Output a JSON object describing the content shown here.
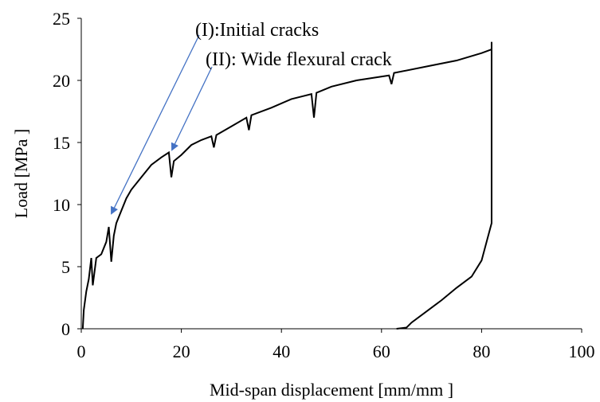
{
  "chart_data": {
    "type": "line",
    "x_label": "Mid-span displacement [mm/mm ]",
    "y_label": "Load [MPa ]",
    "annotations": [
      "(I):Initial cracks",
      "(II): Wide flexural crack"
    ],
    "xlim": [
      0,
      100
    ],
    "xticks": [
      0,
      20,
      40,
      60,
      80,
      100
    ],
    "ylim": [
      0,
      25
    ],
    "yticks": [
      0,
      5,
      10,
      15,
      20,
      25
    ],
    "grid": false,
    "series": [
      {
        "name": "Load",
        "color": "#000000",
        "x": [
          0.3,
          0.5,
          1,
          1.5,
          2,
          2.3,
          3,
          4,
          5,
          5.5,
          6,
          6.5,
          7,
          8,
          9,
          10,
          12,
          14,
          16,
          17.5,
          18,
          18.5,
          20,
          22,
          24,
          26,
          26.5,
          27,
          30,
          33,
          33.5,
          34,
          38,
          42,
          46,
          46.5,
          47,
          50,
          55,
          61.5,
          62,
          62.5,
          70,
          75,
          80,
          82,
          82,
          82,
          81,
          80,
          78,
          75,
          72,
          69,
          66,
          65,
          63
        ],
        "values": [
          0,
          1.5,
          3,
          4,
          5.7,
          3.5,
          5.7,
          6,
          7,
          8.2,
          5.4,
          7.5,
          8.5,
          9.5,
          10.5,
          11.2,
          12.2,
          13.2,
          13.8,
          14.2,
          12.2,
          13.5,
          14,
          14.8,
          15.2,
          15.5,
          14.6,
          15.6,
          16.3,
          17,
          16,
          17.2,
          17.8,
          18.5,
          18.9,
          17,
          19,
          19.5,
          20,
          20.4,
          19.7,
          20.6,
          21.2,
          21.6,
          22.2,
          22.5,
          23.1,
          8.5,
          7,
          5.5,
          4.2,
          3.3,
          2.3,
          1.4,
          0.5,
          0.1,
          0
        ]
      }
    ]
  }
}
